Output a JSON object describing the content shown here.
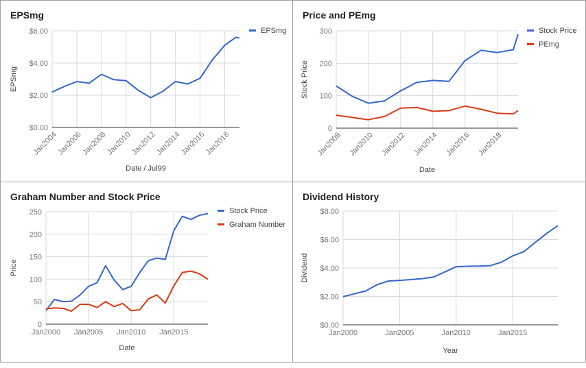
{
  "chart_data": [
    {
      "id": "eps",
      "type": "line",
      "title": "EPSmg",
      "xlabel": "Date / Jul99",
      "ylabel": "EPSmg",
      "x": [
        2004,
        2005,
        2006,
        2007,
        2008,
        2009,
        2010,
        2011,
        2012,
        2013,
        2014,
        2015,
        2016,
        2017,
        2018,
        2018.9,
        2019.2
      ],
      "series": [
        {
          "name": "EPSmg",
          "color": "#3366cc",
          "values": [
            2.2,
            2.55,
            2.85,
            2.75,
            3.3,
            2.97,
            2.9,
            2.3,
            1.85,
            2.25,
            2.85,
            2.7,
            3.05,
            4.2,
            5.1,
            5.6,
            5.55
          ]
        }
      ],
      "xlim": [
        2004,
        2019.2
      ],
      "ylim": [
        0,
        6
      ],
      "yticks": [
        0,
        2,
        4,
        6
      ],
      "ytick_labels": [
        "$0.00",
        "$2.00",
        "$4.00",
        "$6.00"
      ],
      "xticks": [
        2004,
        2006,
        2008,
        2010,
        2012,
        2014,
        2016,
        2018
      ],
      "xtick_labels": [
        "Jan2004",
        "Jan2006",
        "Jan2008",
        "Jan2010",
        "Jan2012",
        "Jan2014",
        "Jan2016",
        "Jan2018"
      ],
      "xtick_rotated": true,
      "grid": true,
      "legend": "top-right"
    },
    {
      "id": "pe",
      "type": "line",
      "title": "Price and PEmg",
      "xlabel": "Date",
      "ylabel": "Stock Price",
      "x": [
        2008,
        2009,
        2010,
        2011,
        2012,
        2013,
        2014,
        2015,
        2016,
        2017,
        2018,
        2019,
        2019.3
      ],
      "series": [
        {
          "name": "Stock Price",
          "color": "#3366cc",
          "values": [
            130,
            98,
            77,
            84,
            115,
            141,
            147,
            144,
            208,
            240,
            233,
            242,
            289
          ]
        },
        {
          "name": "PEmg",
          "color": "#dc3912",
          "values": [
            40,
            33,
            26,
            36,
            62,
            64,
            52,
            54,
            68,
            58,
            46,
            44,
            54
          ]
        }
      ],
      "xlim": [
        2008,
        2019.3
      ],
      "ylim": [
        0,
        300
      ],
      "yticks": [
        0,
        100,
        200,
        300
      ],
      "ytick_labels": [
        "0",
        "100",
        "200",
        "300"
      ],
      "xticks": [
        2008,
        2010,
        2012,
        2014,
        2016,
        2018
      ],
      "xtick_labels": [
        "Jan2008",
        "Jan2010",
        "Jan2012",
        "Jan2014",
        "Jan2016",
        "Jan2018"
      ],
      "xtick_rotated": true,
      "grid": true,
      "legend": "top-right"
    },
    {
      "id": "graham",
      "type": "line",
      "title": "Graham Number and Stock Price",
      "xlabel": "Date",
      "ylabel": "Price",
      "x": [
        2000,
        2001,
        2002,
        2003,
        2004,
        2005,
        2006,
        2007,
        2008,
        2009,
        2010,
        2011,
        2012,
        2013,
        2014,
        2015,
        2016,
        2017,
        2018,
        2019
      ],
      "series": [
        {
          "name": "Stock Price",
          "color": "#3366cc",
          "values": [
            30,
            55,
            50,
            51,
            65,
            84,
            92,
            130,
            98,
            77,
            84,
            115,
            141,
            147,
            144,
            208,
            240,
            233,
            242,
            246
          ]
        },
        {
          "name": "Graham Number",
          "color": "#dc3912",
          "values": [
            34,
            36,
            35,
            29,
            44,
            44,
            37,
            50,
            39,
            46,
            30,
            32,
            56,
            65,
            47,
            85,
            115,
            118,
            112,
            100
          ]
        }
      ],
      "xlim": [
        2000,
        2019
      ],
      "ylim": [
        0,
        250
      ],
      "yticks": [
        0,
        50,
        100,
        150,
        200,
        250
      ],
      "ytick_labels": [
        "0",
        "50",
        "100",
        "150",
        "200",
        "250"
      ],
      "xticks": [
        2000,
        2005,
        2010,
        2015
      ],
      "xtick_labels": [
        "Jan2000",
        "Jan2005",
        "Jan2010",
        "Jan2015"
      ],
      "xtick_rotated": false,
      "grid": true,
      "legend": "top-right"
    },
    {
      "id": "dividend",
      "type": "line",
      "title": "Dividend History",
      "xlabel": "Year",
      "ylabel": "Dividend",
      "x": [
        2000,
        2001,
        2002,
        2003,
        2004,
        2005,
        2006,
        2007,
        2008,
        2009,
        2010,
        2011,
        2012,
        2013,
        2014,
        2015,
        2016,
        2017,
        2018,
        2019
      ],
      "series": [
        {
          "name": "Dividend",
          "color": "#3366cc",
          "values": [
            1.98,
            2.18,
            2.38,
            2.82,
            3.08,
            3.13,
            3.18,
            3.25,
            3.36,
            3.72,
            4.08,
            4.12,
            4.13,
            4.16,
            4.4,
            4.85,
            5.15,
            5.8,
            6.42,
            6.98
          ]
        }
      ],
      "xlim": [
        2000,
        2019
      ],
      "ylim": [
        0,
        8
      ],
      "yticks": [
        0,
        2,
        4,
        6,
        8
      ],
      "ytick_labels": [
        "$0.00",
        "$2.00",
        "$4.00",
        "$6.00",
        "$8.00"
      ],
      "xticks": [
        2000,
        2005,
        2010,
        2015
      ],
      "xtick_labels": [
        "Jan2000",
        "Jan2005",
        "Jan2010",
        "Jan2015"
      ],
      "xtick_rotated": false,
      "grid": true,
      "legend": "none"
    }
  ]
}
